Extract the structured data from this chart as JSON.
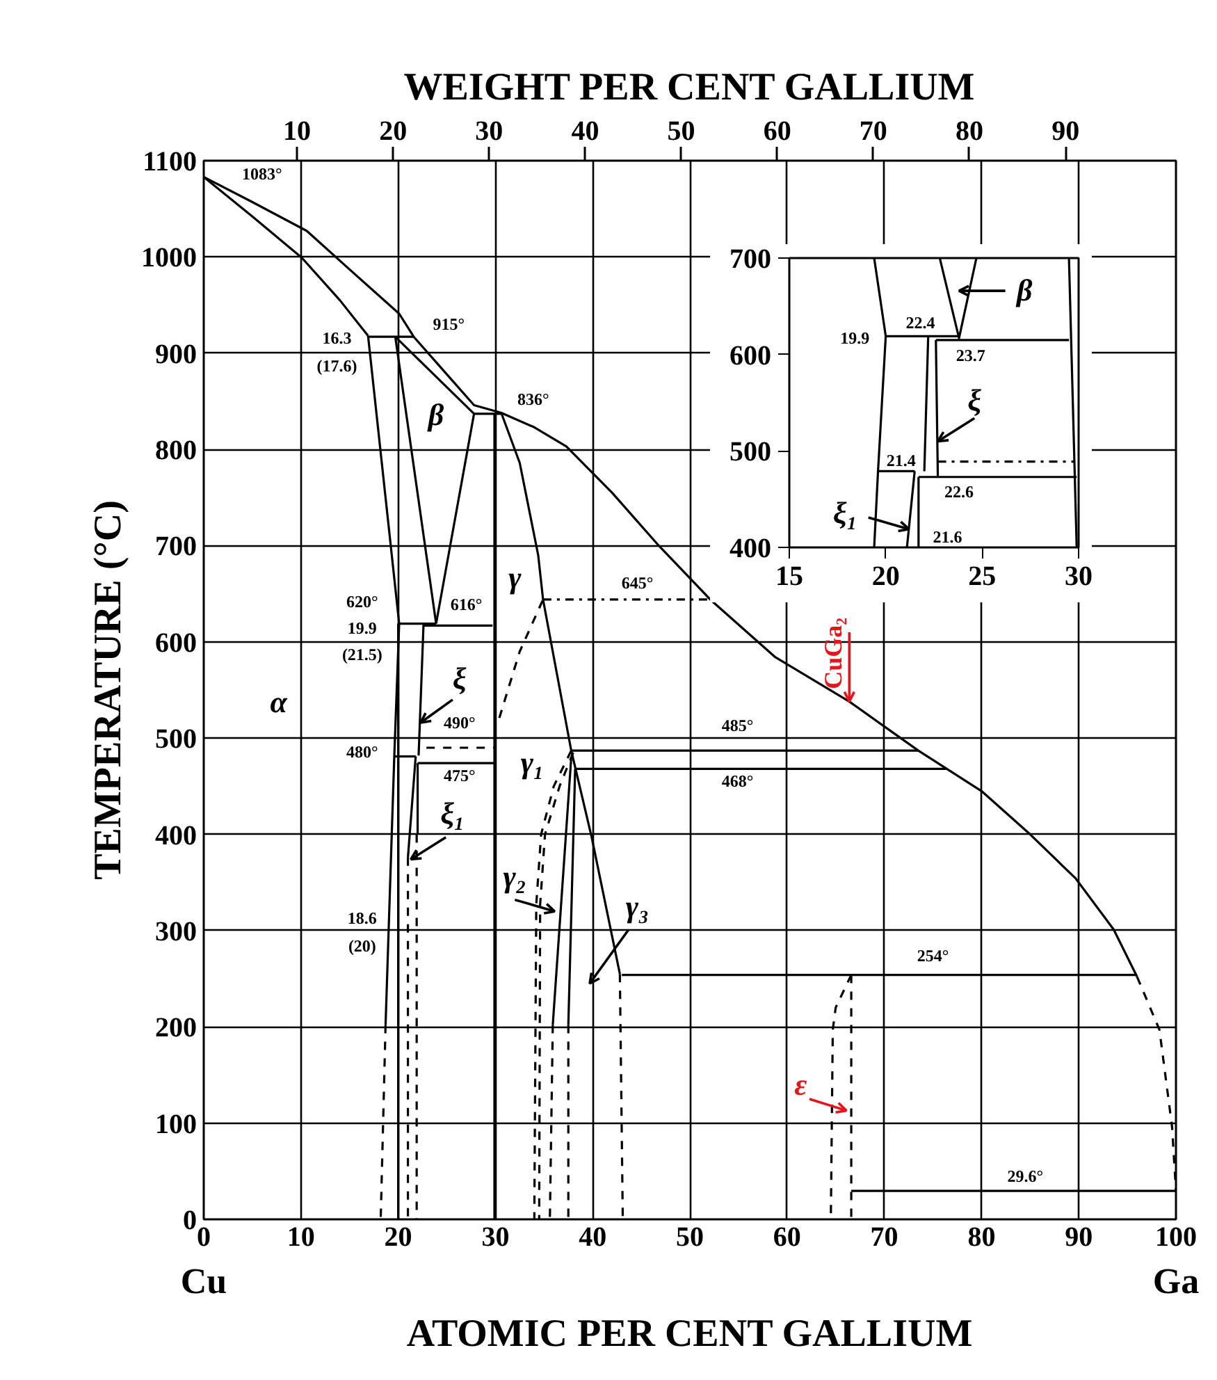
{
  "chart_data": [
    {
      "type": "line",
      "x2label": "WEIGHT PER CENT GALLIUM",
      "xlabel": "ATOMIC PER CENT GALLIUM",
      "ylabel": "TEMPERATURE (°C)",
      "xlim": [
        0,
        100
      ],
      "ylim": [
        0,
        1100
      ],
      "xticks": [
        0,
        10,
        20,
        30,
        40,
        50,
        60,
        70,
        80,
        90,
        100
      ],
      "yticks": [
        0,
        100,
        200,
        300,
        400,
        500,
        600,
        700,
        800,
        900,
        1000,
        1100
      ],
      "x2lim": [
        0.3,
        101.5
      ],
      "x2ticks": [
        10,
        20,
        30,
        40,
        50,
        60,
        70,
        80,
        90
      ],
      "grid": true,
      "series": [
        {
          "color": "#000000",
          "x": [
            0,
            5,
            10.6,
            15,
            20.1,
            21.6,
            25,
            27.8,
            30.6,
            34,
            37.3,
            42,
            46.8,
            52.1,
            58.8,
            66.4,
            73.5,
            80,
            85,
            89.7,
            93.6,
            96
          ],
          "values": [
            1083,
            1057,
            1027,
            987,
            941,
            917,
            878,
            846,
            838,
            823,
            803,
            755,
            700,
            644,
            584,
            538,
            487,
            445,
            400,
            354,
            301,
            252
          ]
        },
        {
          "color": "#000000",
          "line_style": "dashed",
          "x": [
            96,
            98.3,
            99.6,
            100
          ],
          "values": [
            252,
            197,
            96,
            29.6
          ]
        },
        {
          "color": "#000000",
          "x": [
            0,
            5,
            10.1,
            14,
            16.9
          ],
          "values": [
            1083,
            1042,
            999,
            955,
            918
          ]
        },
        {
          "color": "#000000",
          "x": [
            16.9,
            21.6
          ],
          "values": [
            917,
            917
          ]
        },
        {
          "color": "#000000",
          "x": [
            16.9,
            20.1,
            19.6,
            18.7
          ],
          "values": [
            918,
            619,
            482,
            202
          ]
        },
        {
          "color": "#000000",
          "line_style": "dashed",
          "x": [
            18.7,
            18.2
          ],
          "values": [
            202,
            0
          ]
        },
        {
          "color": "#000000",
          "x": [
            19.7,
            23.9
          ],
          "values": [
            917,
            619
          ]
        },
        {
          "color": "#000000",
          "x": [
            23.9,
            27.8
          ],
          "values": [
            619,
            837
          ]
        },
        {
          "color": "#000000",
          "x": [
            19.7,
            27.8
          ],
          "values": [
            917,
            837
          ]
        },
        {
          "color": "#000000",
          "x": [
            27.8,
            30.6
          ],
          "values": [
            837,
            837
          ]
        },
        {
          "color": "#000000",
          "x": [
            20.1,
            23.9
          ],
          "values": [
            619,
            619
          ]
        },
        {
          "color": "#000000",
          "x": [
            22.5,
            29.7
          ],
          "values": [
            617,
            617
          ]
        },
        {
          "color": "#000000",
          "x": [
            29.9,
            29.9
          ],
          "values": [
            837,
            0
          ]
        },
        {
          "color": "#000000",
          "x": [
            30.6,
            32.5,
            34.4,
            34.9,
            37.8,
            39.9,
            42.8
          ],
          "values": [
            838,
            786,
            690,
            644,
            487,
            397,
            255
          ]
        },
        {
          "color": "#000000",
          "line_style": "dashed",
          "x": [
            42.8,
            43.1
          ],
          "values": [
            255,
            0
          ]
        },
        {
          "color": "#000000",
          "line_style": "dashdot",
          "x": [
            34.9,
            52.1
          ],
          "values": [
            644,
            644
          ]
        },
        {
          "color": "#000000",
          "line_style": "dashed",
          "x": [
            30.4,
            32.5,
            34.9
          ],
          "values": [
            521,
            590,
            644
          ]
        },
        {
          "color": "#000000",
          "x": [
            20.0,
            20.0
          ],
          "values": [
            619,
            0
          ]
        },
        {
          "color": "#000000",
          "x": [
            22.6,
            22.1
          ],
          "values": [
            617,
            482
          ]
        },
        {
          "color": "#000000",
          "x": [
            19.6,
            21.8
          ],
          "values": [
            481,
            481
          ]
        },
        {
          "color": "#000000",
          "line_style": "dashed",
          "x": [
            22.9,
            29.9
          ],
          "values": [
            490,
            490
          ]
        },
        {
          "color": "#000000",
          "x": [
            22.0,
            29.9
          ],
          "values": [
            474,
            474
          ]
        },
        {
          "color": "#000000",
          "x": [
            22.0,
            22.0
          ],
          "values": [
            474,
            400
          ]
        },
        {
          "color": "#000000",
          "x": [
            21.8,
            21.0
          ],
          "values": [
            481,
            376
          ]
        },
        {
          "color": "#000000",
          "line_style": "dashed",
          "x": [
            21.0,
            21.0
          ],
          "values": [
            376,
            0
          ]
        },
        {
          "color": "#000000",
          "line_style": "dashed",
          "x": [
            21.9,
            21.9
          ],
          "values": [
            400,
            0
          ]
        },
        {
          "color": "#000000",
          "x": [
            37.8,
            73.5
          ],
          "values": [
            487,
            487
          ]
        },
        {
          "color": "#000000",
          "x": [
            38.2,
            76.4
          ],
          "values": [
            468,
            468
          ]
        },
        {
          "color": "#000000",
          "line_style": "dashed",
          "x": [
            37.8,
            36.0,
            34.7,
            34.2,
            34.0
          ],
          "values": [
            487,
            450,
            400,
            327,
            0
          ]
        },
        {
          "color": "#000000",
          "line_style": "dashed",
          "x": [
            38.0,
            36.6,
            35.1,
            34.6,
            34.5
          ],
          "values": [
            485,
            450,
            400,
            327,
            0
          ]
        },
        {
          "color": "#000000",
          "x": [
            37.8,
            35.9
          ],
          "values": [
            480,
            202
          ]
        },
        {
          "color": "#000000",
          "line_style": "dashed",
          "x": [
            35.9,
            35.6
          ],
          "values": [
            202,
            0
          ]
        },
        {
          "color": "#000000",
          "x": [
            38.2,
            37.5
          ],
          "values": [
            468,
            202
          ]
        },
        {
          "color": "#000000",
          "line_style": "dashed",
          "x": [
            37.5,
            37.5
          ],
          "values": [
            202,
            0
          ]
        },
        {
          "color": "#000000",
          "x": [
            43.0,
            96.0
          ],
          "values": [
            254,
            254
          ]
        },
        {
          "color": "#000000",
          "line_style": "dashed",
          "x": [
            66.6,
            66.6
          ],
          "values": [
            254,
            0
          ]
        },
        {
          "color": "#000000",
          "line_style": "dashed",
          "x": [
            66.6,
            65.0,
            64.7,
            64.5
          ],
          "values": [
            254,
            220,
            197,
            0
          ]
        },
        {
          "color": "#000000",
          "x": [
            66.6,
            100
          ],
          "values": [
            29.6,
            29.6
          ]
        }
      ],
      "annotations": [
        "1083°",
        "915°",
        "16.3",
        "(17.6)",
        "836°",
        "β",
        "γ",
        "645°",
        "620°",
        "19.9",
        "(21.5)",
        "616°",
        "α",
        "ξ",
        "490°",
        "480°",
        "475°",
        "γ₁",
        "ξ₁",
        "485°",
        "468°",
        "γ₂",
        "18.6",
        "(20)",
        "γ₃",
        "254°",
        "ε",
        "29.6°",
        "CuGa₂",
        "Cu",
        "Ga"
      ]
    },
    {
      "type": "line",
      "xlim": [
        15,
        30
      ],
      "ylim": [
        400,
        700
      ],
      "xticks": [
        15,
        20,
        25,
        30
      ],
      "yticks": [
        400,
        500,
        600,
        700
      ],
      "grid": false,
      "series": [
        {
          "color": "#000000",
          "x": [
            19.4,
            20.0,
            19.6,
            19.4
          ],
          "values": [
            700,
            619,
            479,
            400
          ]
        },
        {
          "color": "#000000",
          "x": [
            20.0,
            23.8
          ],
          "values": [
            619,
            619
          ]
        },
        {
          "color": "#000000",
          "x": [
            22.8,
            23.8,
            24.7
          ],
          "values": [
            700,
            617,
            700
          ]
        },
        {
          "color": "#000000",
          "x": [
            22.6,
            29.5
          ],
          "values": [
            615,
            615
          ]
        },
        {
          "color": "#000000",
          "x": [
            22.6,
            22.7
          ],
          "values": [
            615,
            474
          ]
        },
        {
          "color": "#000000",
          "x": [
            22.2,
            22.0
          ],
          "values": [
            618,
            479
          ]
        },
        {
          "color": "#000000",
          "x": [
            19.6,
            21.5
          ],
          "values": [
            479,
            479
          ]
        },
        {
          "color": "#000000",
          "line_style": "dashdot",
          "x": [
            22.7,
            29.8
          ],
          "values": [
            489,
            489
          ]
        },
        {
          "color": "#000000",
          "x": [
            21.7,
            29.9
          ],
          "values": [
            473,
            473
          ]
        },
        {
          "color": "#000000",
          "x": [
            21.7,
            21.7
          ],
          "values": [
            473,
            400
          ]
        },
        {
          "color": "#000000",
          "x": [
            21.5,
            21.1
          ],
          "values": [
            479,
            400
          ]
        },
        {
          "color": "#000000",
          "x": [
            29.5,
            29.9
          ],
          "values": [
            700,
            400
          ]
        }
      ],
      "annotations": [
        "22.4",
        "19.9",
        "23.7",
        "21.4",
        "22.6",
        "21.6",
        "β",
        "ξ",
        {
          "text": "ξ₁",
          "x": 21.2,
          "y": 419
        }
      ]
    }
  ]
}
